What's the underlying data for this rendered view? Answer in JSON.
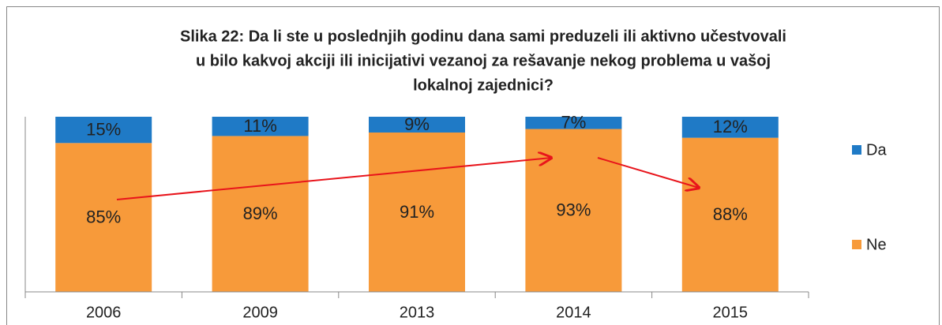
{
  "chart_data": {
    "type": "stacked_bar",
    "title": [
      "Slika 22: Da li ste u poslednjih godinu dana sami preduzeli ili aktivno učestvovali",
      "u bilo kakvoj akciji ili inicijativi vezanoj za rešavanje nekog problema u vašoj",
      "lokalnoj zajednici?"
    ],
    "categories": [
      "2006",
      "2009",
      "2013",
      "2014",
      "2015"
    ],
    "series": [
      {
        "name": "Ne",
        "color": "#f79a3a",
        "values": [
          85,
          89,
          91,
          93,
          88
        ],
        "value_labels": [
          "85%",
          "89%",
          "91%",
          "93%",
          "88%"
        ]
      },
      {
        "name": "Da",
        "color": "#1f7ac6",
        "values": [
          15,
          11,
          9,
          7,
          12
        ],
        "value_labels": [
          "15%",
          "11%",
          "9%",
          "7%",
          "12%"
        ]
      }
    ],
    "ylim": [
      0,
      100
    ]
  }
}
